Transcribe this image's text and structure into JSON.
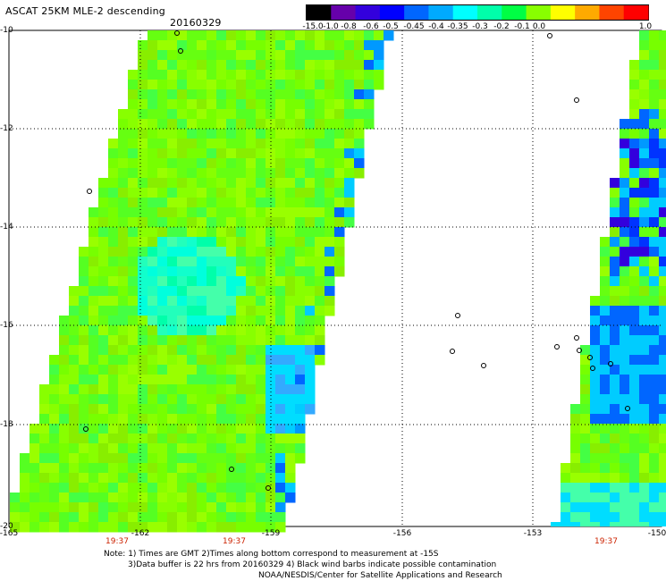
{
  "title": "ASCAT 25KM MLE-2 descending",
  "date": "20160329",
  "colorbar": {
    "labels": [
      "-15.0",
      "-1.0",
      "-0.8",
      "-0.6",
      "-0.5",
      "-0.45",
      "-0.4",
      "-0.35",
      "-0.3",
      "-0.2",
      "-0.1",
      "0.0",
      "1.0"
    ],
    "colors": [
      "#000000",
      "#6600aa",
      "#3300dd",
      "#0000ff",
      "#0066ff",
      "#00aaff",
      "#00ffff",
      "#00ffaa",
      "#00ff44",
      "#88ff00",
      "#ffff00",
      "#ffaa00",
      "#ff4400",
      "#ff0000"
    ]
  },
  "map": {
    "lat_labels": [
      "-10",
      "-12",
      "-14",
      "-16",
      "-18",
      "-20"
    ],
    "lon_labels": [
      "-165",
      "-162",
      "-159",
      "-156",
      "-153",
      "-150"
    ],
    "time_labels": [
      "19:37",
      "19:37",
      "19:37"
    ]
  },
  "notes": {
    "line1": "Note: 1) Times are GMT 2)Times along bottom correspond to measurement at -15S",
    "line2": "3)Data buffer is 22 hrs from 20160329 4) Black wind barbs indicate possible contamination",
    "line3": "NOAA/NESDIS/Center for Satellite Applications and Research"
  }
}
